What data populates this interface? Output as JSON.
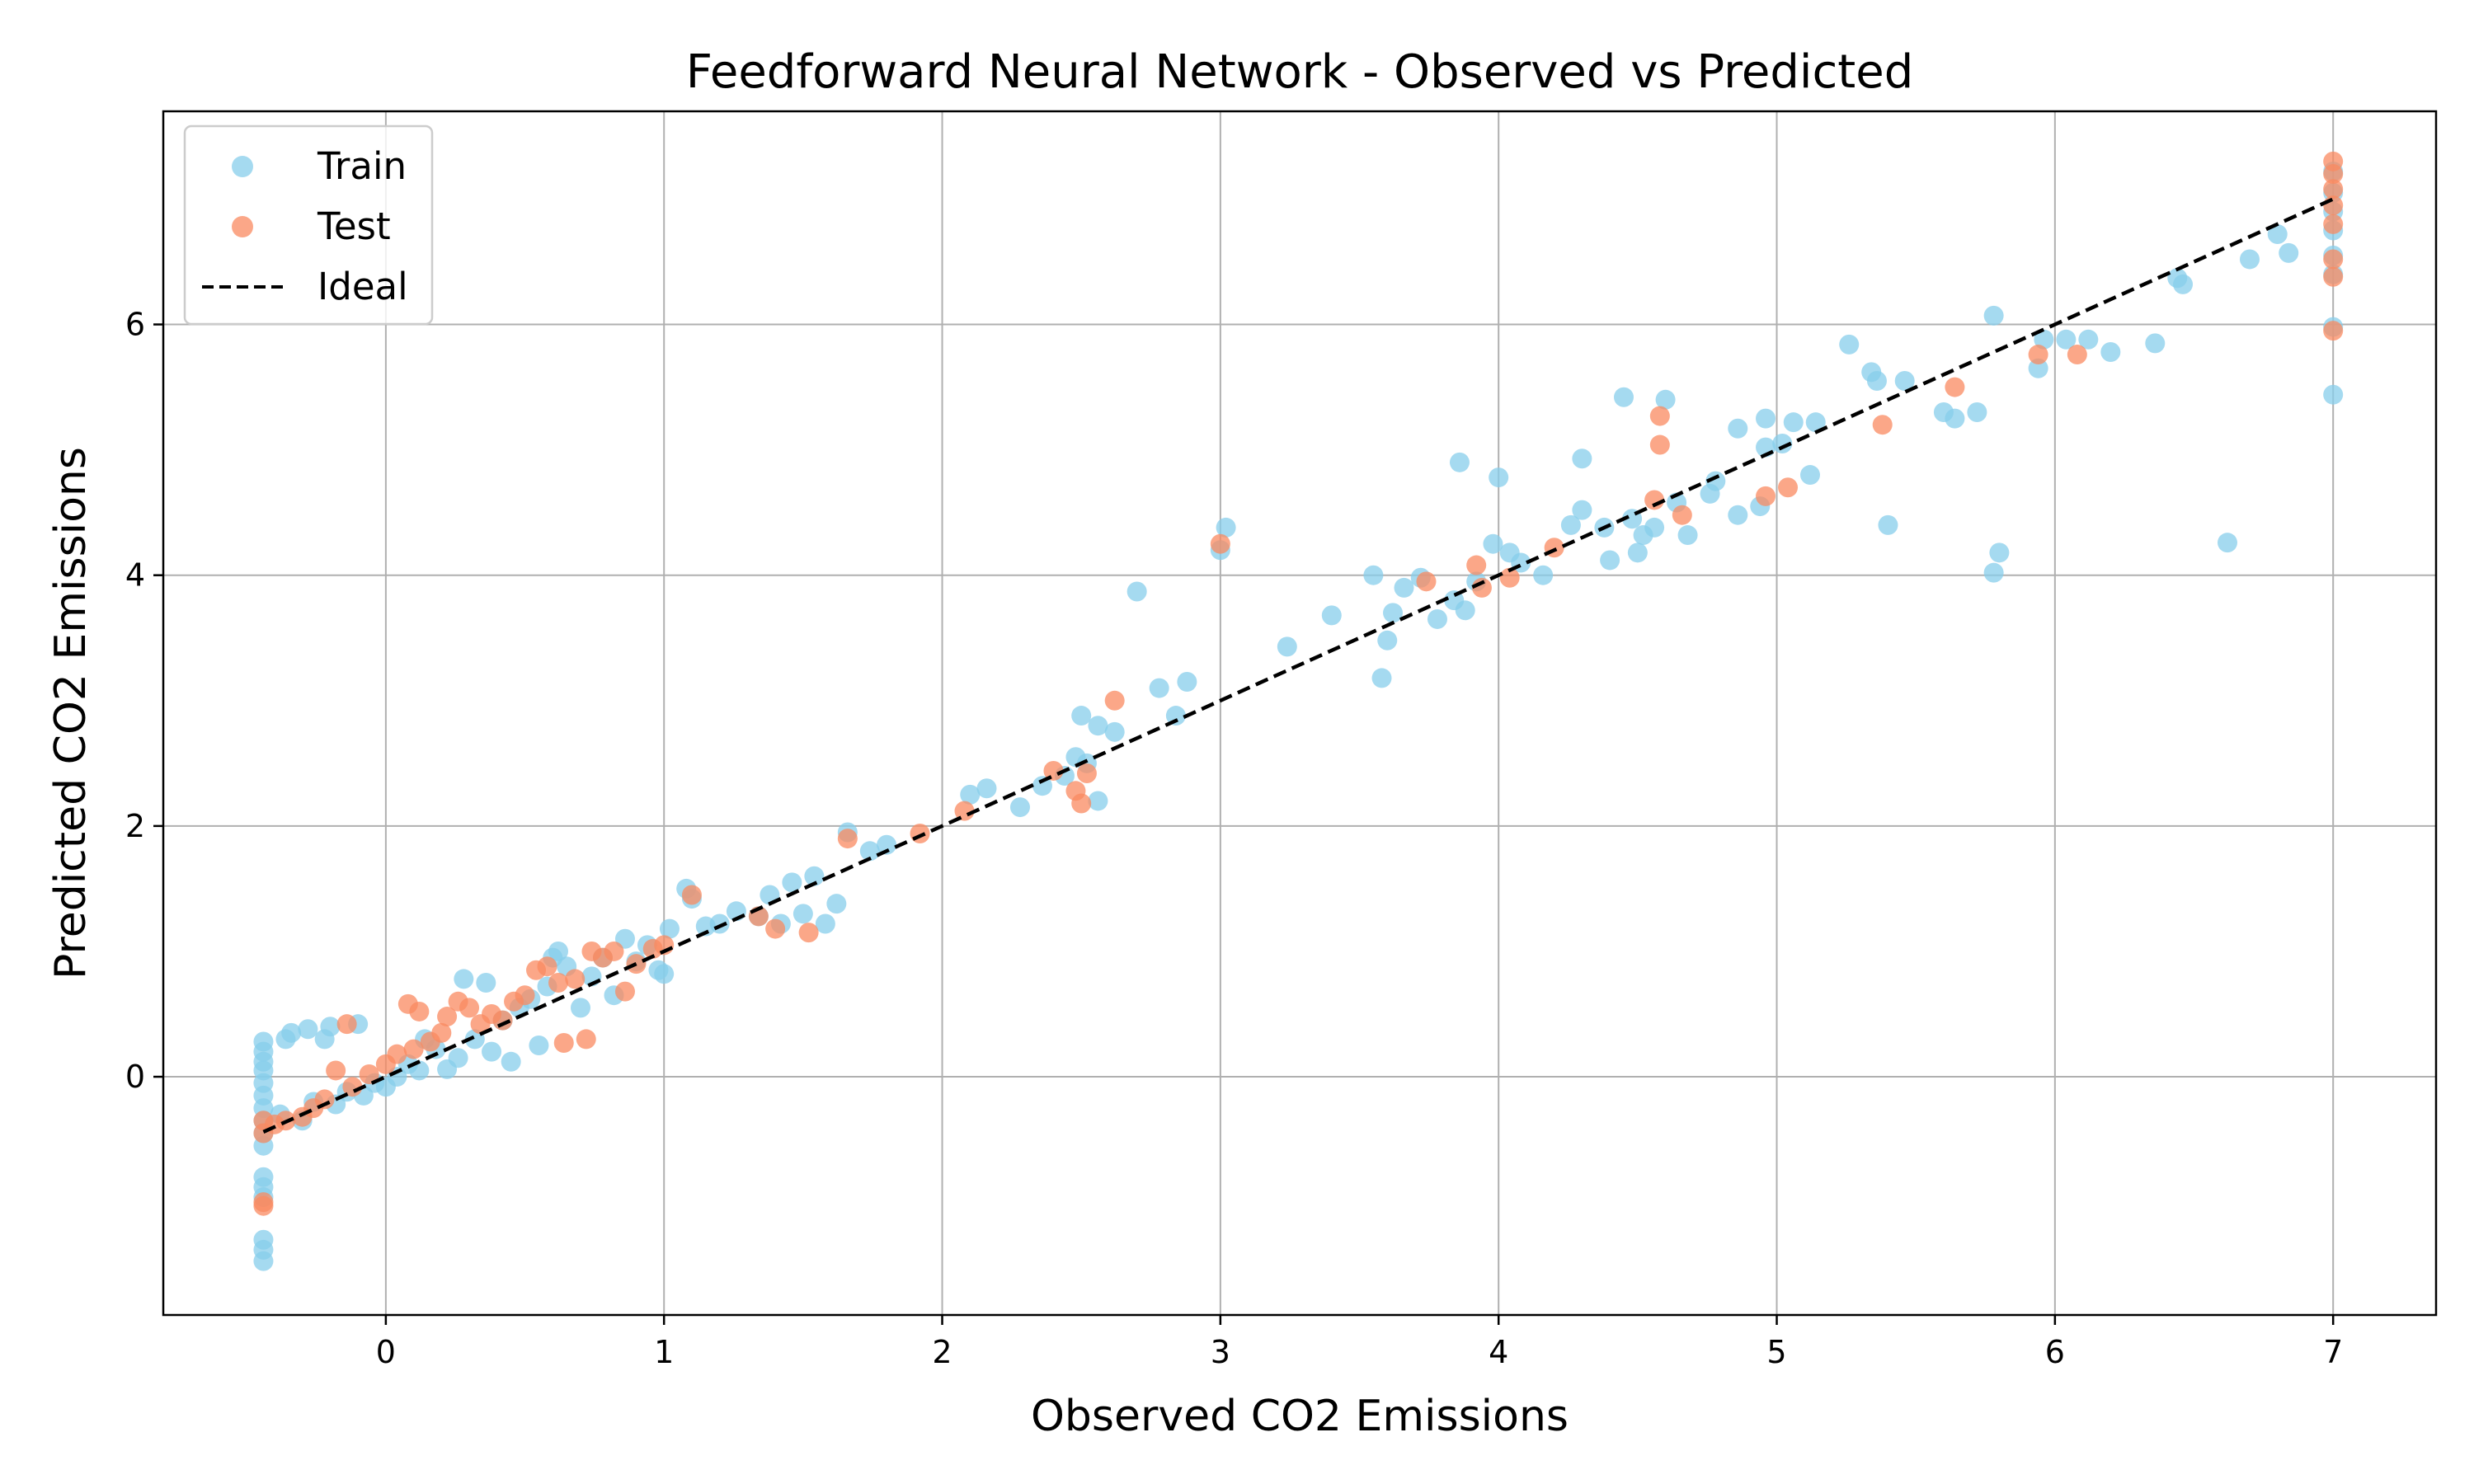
{
  "chart_data": {
    "type": "scatter",
    "title": "Feedforward Neural Network - Observed vs Predicted",
    "xlabel": "Observed CO2 Emissions",
    "ylabel": "Predicted CO2 Emissions",
    "xlim": [
      -0.8,
      7.37
    ],
    "ylim": [
      -1.9,
      7.7
    ],
    "x_ticks": [
      0,
      1,
      2,
      3,
      4,
      5,
      6,
      7
    ],
    "y_ticks": [
      0,
      2,
      4,
      6
    ],
    "grid": true,
    "legend_position": "top-left",
    "series": [
      {
        "name": "Train",
        "color": "#87CEEB",
        "points": [
          [
            -0.44,
            0.28
          ],
          [
            -0.44,
            0.2
          ],
          [
            -0.44,
            0.12
          ],
          [
            -0.44,
            0.05
          ],
          [
            -0.44,
            -0.05
          ],
          [
            -0.44,
            -0.15
          ],
          [
            -0.44,
            -0.25
          ],
          [
            -0.44,
            -0.35
          ],
          [
            -0.44,
            -0.45
          ],
          [
            -0.44,
            -0.55
          ],
          [
            -0.44,
            -0.8
          ],
          [
            -0.44,
            -0.88
          ],
          [
            -0.44,
            -0.96
          ],
          [
            -0.44,
            -1.3
          ],
          [
            -0.44,
            -1.38
          ],
          [
            -0.44,
            -1.47
          ],
          [
            -0.38,
            -0.3
          ],
          [
            -0.36,
            0.3
          ],
          [
            -0.34,
            0.35
          ],
          [
            -0.3,
            -0.35
          ],
          [
            -0.28,
            0.38
          ],
          [
            -0.26,
            -0.2
          ],
          [
            -0.22,
            0.3
          ],
          [
            -0.2,
            0.4
          ],
          [
            -0.18,
            -0.22
          ],
          [
            -0.14,
            -0.12
          ],
          [
            -0.1,
            0.42
          ],
          [
            -0.08,
            -0.15
          ],
          [
            -0.04,
            -0.05
          ],
          [
            0.0,
            -0.08
          ],
          [
            0.04,
            0.0
          ],
          [
            0.08,
            0.1
          ],
          [
            0.12,
            0.05
          ],
          [
            0.14,
            0.3
          ],
          [
            0.18,
            0.22
          ],
          [
            0.22,
            0.06
          ],
          [
            0.26,
            0.15
          ],
          [
            0.28,
            0.78
          ],
          [
            0.32,
            0.3
          ],
          [
            0.36,
            0.75
          ],
          [
            0.38,
            0.2
          ],
          [
            0.42,
            0.45
          ],
          [
            0.45,
            0.12
          ],
          [
            0.48,
            0.55
          ],
          [
            0.52,
            0.62
          ],
          [
            0.55,
            0.25
          ],
          [
            0.58,
            0.72
          ],
          [
            0.6,
            0.95
          ],
          [
            0.62,
            1.0
          ],
          [
            0.65,
            0.88
          ],
          [
            0.7,
            0.55
          ],
          [
            0.74,
            0.8
          ],
          [
            0.78,
            0.95
          ],
          [
            0.82,
            0.65
          ],
          [
            0.86,
            1.1
          ],
          [
            0.9,
            0.92
          ],
          [
            0.94,
            1.05
          ],
          [
            0.98,
            0.85
          ],
          [
            1.0,
            0.82
          ],
          [
            1.02,
            1.18
          ],
          [
            1.08,
            1.5
          ],
          [
            1.1,
            1.42
          ],
          [
            1.15,
            1.2
          ],
          [
            1.2,
            1.22
          ],
          [
            1.26,
            1.32
          ],
          [
            1.34,
            1.28
          ],
          [
            1.38,
            1.45
          ],
          [
            1.42,
            1.22
          ],
          [
            1.46,
            1.55
          ],
          [
            1.5,
            1.3
          ],
          [
            1.54,
            1.6
          ],
          [
            1.58,
            1.22
          ],
          [
            1.62,
            1.38
          ],
          [
            1.66,
            1.95
          ],
          [
            1.74,
            1.8
          ],
          [
            1.8,
            1.85
          ],
          [
            2.1,
            2.25
          ],
          [
            2.16,
            2.3
          ],
          [
            2.28,
            2.15
          ],
          [
            2.36,
            2.32
          ],
          [
            2.44,
            2.4
          ],
          [
            2.48,
            2.55
          ],
          [
            2.5,
            2.88
          ],
          [
            2.52,
            2.5
          ],
          [
            2.56,
            2.8
          ],
          [
            2.56,
            2.2
          ],
          [
            2.62,
            2.75
          ],
          [
            2.7,
            3.87
          ],
          [
            2.78,
            3.1
          ],
          [
            2.84,
            2.88
          ],
          [
            2.88,
            3.15
          ],
          [
            3.0,
            4.2
          ],
          [
            3.02,
            4.38
          ],
          [
            3.24,
            3.43
          ],
          [
            3.4,
            3.68
          ],
          [
            3.55,
            4.0
          ],
          [
            3.58,
            3.18
          ],
          [
            3.6,
            3.48
          ],
          [
            3.62,
            3.7
          ],
          [
            3.66,
            3.9
          ],
          [
            3.72,
            3.98
          ],
          [
            3.78,
            3.65
          ],
          [
            3.84,
            3.8
          ],
          [
            3.86,
            4.9
          ],
          [
            3.88,
            3.72
          ],
          [
            3.92,
            3.95
          ],
          [
            3.98,
            4.25
          ],
          [
            4.0,
            4.78
          ],
          [
            4.04,
            4.18
          ],
          [
            4.08,
            4.1
          ],
          [
            4.16,
            4.0
          ],
          [
            4.26,
            4.4
          ],
          [
            4.3,
            4.52
          ],
          [
            4.3,
            4.93
          ],
          [
            4.38,
            4.38
          ],
          [
            4.4,
            4.12
          ],
          [
            4.45,
            5.42
          ],
          [
            4.48,
            4.45
          ],
          [
            4.5,
            4.18
          ],
          [
            4.52,
            4.32
          ],
          [
            4.56,
            4.38
          ],
          [
            4.6,
            5.4
          ],
          [
            4.64,
            4.58
          ],
          [
            4.68,
            4.32
          ],
          [
            4.76,
            4.65
          ],
          [
            4.78,
            4.75
          ],
          [
            4.86,
            5.17
          ],
          [
            4.86,
            4.48
          ],
          [
            4.94,
            4.55
          ],
          [
            4.96,
            5.25
          ],
          [
            4.96,
            5.02
          ],
          [
            5.02,
            5.05
          ],
          [
            5.06,
            5.22
          ],
          [
            5.12,
            4.8
          ],
          [
            5.14,
            5.22
          ],
          [
            5.26,
            5.84
          ],
          [
            5.34,
            5.62
          ],
          [
            5.36,
            5.55
          ],
          [
            5.4,
            4.4
          ],
          [
            5.46,
            5.55
          ],
          [
            5.6,
            5.3
          ],
          [
            5.64,
            5.25
          ],
          [
            5.72,
            5.3
          ],
          [
            5.78,
            6.07
          ],
          [
            5.78,
            4.02
          ],
          [
            5.8,
            4.18
          ],
          [
            5.94,
            5.65
          ],
          [
            5.96,
            5.88
          ],
          [
            6.04,
            5.88
          ],
          [
            6.12,
            5.88
          ],
          [
            6.2,
            5.78
          ],
          [
            6.36,
            5.85
          ],
          [
            6.44,
            6.37
          ],
          [
            6.46,
            6.32
          ],
          [
            6.62,
            4.26
          ],
          [
            6.7,
            6.52
          ],
          [
            6.8,
            6.72
          ],
          [
            6.84,
            6.57
          ],
          [
            7.0,
            7.22
          ],
          [
            7.0,
            7.05
          ],
          [
            7.0,
            6.9
          ],
          [
            7.0,
            6.75
          ],
          [
            7.0,
            6.55
          ],
          [
            7.0,
            6.4
          ],
          [
            7.0,
            5.98
          ],
          [
            7.0,
            5.44
          ]
        ]
      },
      {
        "name": "Test",
        "color": "#FA8A60",
        "points": [
          [
            -0.44,
            -0.35
          ],
          [
            -0.44,
            -0.45
          ],
          [
            -0.44,
            -1.0
          ],
          [
            -0.44,
            -1.03
          ],
          [
            -0.4,
            -0.38
          ],
          [
            -0.36,
            -0.35
          ],
          [
            -0.3,
            -0.32
          ],
          [
            -0.26,
            -0.25
          ],
          [
            -0.22,
            -0.18
          ],
          [
            -0.18,
            0.05
          ],
          [
            -0.14,
            0.42
          ],
          [
            -0.12,
            -0.08
          ],
          [
            -0.06,
            0.02
          ],
          [
            0.0,
            0.1
          ],
          [
            0.04,
            0.18
          ],
          [
            0.08,
            0.58
          ],
          [
            0.1,
            0.22
          ],
          [
            0.12,
            0.52
          ],
          [
            0.16,
            0.28
          ],
          [
            0.2,
            0.35
          ],
          [
            0.22,
            0.48
          ],
          [
            0.26,
            0.6
          ],
          [
            0.3,
            0.55
          ],
          [
            0.34,
            0.42
          ],
          [
            0.38,
            0.5
          ],
          [
            0.42,
            0.45
          ],
          [
            0.46,
            0.6
          ],
          [
            0.5,
            0.65
          ],
          [
            0.54,
            0.85
          ],
          [
            0.58,
            0.88
          ],
          [
            0.62,
            0.75
          ],
          [
            0.64,
            0.27
          ],
          [
            0.68,
            0.78
          ],
          [
            0.72,
            0.3
          ],
          [
            0.74,
            1.0
          ],
          [
            0.78,
            0.95
          ],
          [
            0.82,
            1.0
          ],
          [
            0.86,
            0.68
          ],
          [
            0.9,
            0.9
          ],
          [
            0.96,
            1.02
          ],
          [
            1.0,
            1.05
          ],
          [
            1.1,
            1.45
          ],
          [
            1.34,
            1.28
          ],
          [
            1.4,
            1.18
          ],
          [
            1.52,
            1.15
          ],
          [
            1.66,
            1.9
          ],
          [
            1.92,
            1.94
          ],
          [
            2.08,
            2.12
          ],
          [
            2.4,
            2.44
          ],
          [
            2.48,
            2.28
          ],
          [
            2.5,
            2.18
          ],
          [
            2.52,
            2.42
          ],
          [
            2.62,
            3.0
          ],
          [
            3.0,
            4.25
          ],
          [
            3.74,
            3.95
          ],
          [
            3.92,
            4.08
          ],
          [
            3.94,
            3.9
          ],
          [
            4.04,
            3.98
          ],
          [
            4.2,
            4.22
          ],
          [
            4.56,
            4.6
          ],
          [
            4.58,
            5.27
          ],
          [
            4.58,
            5.04
          ],
          [
            4.66,
            4.48
          ],
          [
            4.96,
            4.63
          ],
          [
            5.04,
            4.7
          ],
          [
            5.38,
            5.2
          ],
          [
            5.64,
            5.5
          ],
          [
            5.94,
            5.76
          ],
          [
            6.08,
            5.76
          ],
          [
            7.0,
            7.3
          ],
          [
            7.0,
            7.2
          ],
          [
            7.0,
            7.08
          ],
          [
            7.0,
            6.95
          ],
          [
            7.0,
            6.8
          ],
          [
            7.0,
            6.52
          ],
          [
            7.0,
            6.38
          ],
          [
            7.0,
            5.95
          ]
        ]
      },
      {
        "name": "Ideal",
        "color": "#000000",
        "style": "dashed",
        "x": [
          -0.44,
          7.0
        ],
        "y": [
          -0.44,
          7.0
        ]
      }
    ]
  }
}
